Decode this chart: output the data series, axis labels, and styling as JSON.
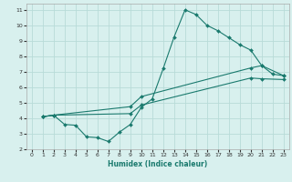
{
  "xlabel": "Humidex (Indice chaleur)",
  "bg_color": "#d8f0ee",
  "grid_color": "#b8dbd8",
  "line_color": "#1a7a6e",
  "xlim": [
    -0.5,
    23.5
  ],
  "ylim": [
    2,
    11.4
  ],
  "xticks": [
    0,
    1,
    2,
    3,
    4,
    5,
    6,
    7,
    8,
    9,
    10,
    11,
    12,
    13,
    14,
    15,
    16,
    17,
    18,
    19,
    20,
    21,
    22,
    23
  ],
  "yticks": [
    2,
    3,
    4,
    5,
    6,
    7,
    8,
    9,
    10,
    11
  ],
  "line1_x": [
    1,
    2,
    3,
    4,
    5,
    6,
    7,
    8,
    9,
    10,
    11,
    12,
    13,
    14,
    15,
    16,
    17,
    18,
    19,
    20,
    21,
    22,
    23
  ],
  "line1_y": [
    4.1,
    4.2,
    3.6,
    3.55,
    2.8,
    2.75,
    2.5,
    3.1,
    3.6,
    4.7,
    5.25,
    7.2,
    9.25,
    11.0,
    10.7,
    10.0,
    9.65,
    9.2,
    8.75,
    8.4,
    7.4,
    6.85,
    6.75
  ],
  "line2_x": [
    1,
    2,
    9,
    10,
    20,
    21,
    23
  ],
  "line2_y": [
    4.1,
    4.2,
    4.75,
    5.4,
    7.25,
    7.4,
    6.75
  ],
  "line3_x": [
    1,
    2,
    9,
    10,
    20,
    21,
    23
  ],
  "line3_y": [
    4.1,
    4.2,
    4.3,
    4.85,
    6.6,
    6.55,
    6.5
  ]
}
